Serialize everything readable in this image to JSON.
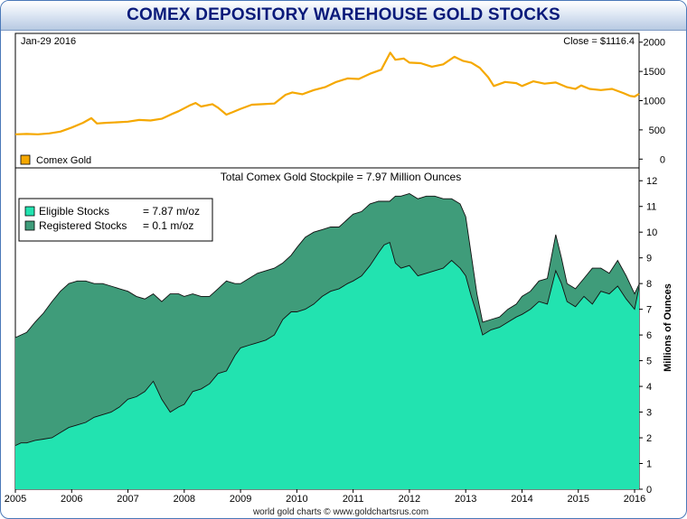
{
  "title": "COMEX DEPOSITORY WAREHOUSE GOLD STOCKS",
  "credit": "world gold charts © www.goldchartsrus.com",
  "colors": {
    "gold": "#f5a800",
    "eligible": "#22e3b0",
    "registered": "#3f9c7a",
    "accent": "#0a1a7a"
  },
  "chart_data": [
    {
      "type": "line",
      "name": "price-panel",
      "date_label": "Jan-29  2016",
      "close_label": "Close = $1116.4",
      "legend": [
        {
          "name": "Comex Gold",
          "color": "#f5a800"
        }
      ],
      "x_range": [
        2005,
        2016.08
      ],
      "ylim": [
        -150,
        2150
      ],
      "yticks": [
        0,
        500,
        1000,
        1500,
        2000
      ],
      "series": [
        {
          "name": "Comex Gold",
          "x": [
            2005.0,
            2005.2,
            2005.4,
            2005.6,
            2005.8,
            2006.0,
            2006.2,
            2006.35,
            2006.45,
            2006.6,
            2006.8,
            2007.0,
            2007.2,
            2007.4,
            2007.6,
            2007.8,
            2007.9,
            2008.1,
            2008.2,
            2008.3,
            2008.5,
            2008.6,
            2008.75,
            2008.85,
            2009.0,
            2009.2,
            2009.4,
            2009.6,
            2009.8,
            2009.92,
            2010.1,
            2010.3,
            2010.5,
            2010.7,
            2010.9,
            2011.1,
            2011.3,
            2011.5,
            2011.66,
            2011.75,
            2011.9,
            2012.0,
            2012.2,
            2012.4,
            2012.6,
            2012.8,
            2012.95,
            2013.1,
            2013.25,
            2013.4,
            2013.5,
            2013.7,
            2013.9,
            2014.0,
            2014.2,
            2014.4,
            2014.6,
            2014.8,
            2014.95,
            2015.05,
            2015.2,
            2015.4,
            2015.6,
            2015.8,
            2015.92,
            2016.0,
            2016.08
          ],
          "values": [
            425,
            430,
            425,
            440,
            470,
            540,
            620,
            700,
            610,
            620,
            630,
            640,
            670,
            660,
            690,
            780,
            820,
            920,
            960,
            900,
            940,
            880,
            760,
            800,
            860,
            930,
            940,
            950,
            1100,
            1140,
            1110,
            1180,
            1230,
            1320,
            1380,
            1370,
            1460,
            1530,
            1820,
            1700,
            1720,
            1650,
            1640,
            1580,
            1620,
            1750,
            1680,
            1650,
            1560,
            1400,
            1250,
            1320,
            1300,
            1250,
            1330,
            1290,
            1310,
            1230,
            1200,
            1260,
            1200,
            1180,
            1200,
            1130,
            1080,
            1070,
            1116
          ]
        }
      ]
    },
    {
      "type": "area",
      "name": "stocks-panel",
      "title": "Total Comex Gold Stockpile = 7.97 Million Ounces",
      "ylabel": "Millions of Ounces",
      "ylim": [
        0,
        12.5
      ],
      "yticks": [
        0,
        1,
        2,
        3,
        4,
        5,
        6,
        7,
        8,
        9,
        10,
        11,
        12
      ],
      "x_range": [
        2005,
        2016.08
      ],
      "xticks": [
        "2005",
        "2006",
        "2007",
        "2008",
        "2009",
        "2010",
        "2011",
        "2012",
        "2013",
        "2014",
        "2015",
        "2016"
      ],
      "legend": [
        {
          "name": "Eligible Stocks",
          "value": "= 7.87 m/oz",
          "color": "#22e3b0"
        },
        {
          "name": "Registered Stocks",
          "value": "= 0.1 m/oz",
          "color": "#3f9c7a"
        }
      ],
      "x": [
        2005.0,
        2005.1,
        2005.2,
        2005.35,
        2005.5,
        2005.65,
        2005.8,
        2005.95,
        2006.1,
        2006.25,
        2006.4,
        2006.55,
        2006.7,
        2006.85,
        2007.0,
        2007.15,
        2007.3,
        2007.45,
        2007.6,
        2007.75,
        2007.9,
        2008.0,
        2008.15,
        2008.3,
        2008.45,
        2008.6,
        2008.75,
        2008.9,
        2009.0,
        2009.15,
        2009.3,
        2009.45,
        2009.6,
        2009.75,
        2009.9,
        2010.0,
        2010.15,
        2010.3,
        2010.45,
        2010.6,
        2010.75,
        2010.9,
        2011.0,
        2011.15,
        2011.3,
        2011.45,
        2011.55,
        2011.65,
        2011.75,
        2011.85,
        2012.0,
        2012.15,
        2012.3,
        2012.45,
        2012.6,
        2012.75,
        2012.9,
        2013.0,
        2013.1,
        2013.2,
        2013.3,
        2013.45,
        2013.6,
        2013.75,
        2013.9,
        2014.0,
        2014.15,
        2014.3,
        2014.45,
        2014.6,
        2014.7,
        2014.8,
        2014.95,
        2015.1,
        2015.25,
        2015.4,
        2015.55,
        2015.7,
        2015.85,
        2016.0,
        2016.08
      ],
      "series": [
        {
          "name": "Eligible Stocks",
          "values": [
            1.7,
            1.8,
            1.8,
            1.9,
            1.95,
            2.0,
            2.2,
            2.4,
            2.5,
            2.6,
            2.8,
            2.9,
            3.0,
            3.2,
            3.5,
            3.6,
            3.8,
            4.2,
            3.5,
            3.0,
            3.2,
            3.3,
            3.8,
            3.9,
            4.1,
            4.5,
            4.6,
            5.2,
            5.5,
            5.6,
            5.7,
            5.8,
            6.0,
            6.6,
            6.9,
            6.9,
            7.0,
            7.2,
            7.5,
            7.7,
            7.8,
            8.0,
            8.1,
            8.3,
            8.7,
            9.2,
            9.5,
            9.6,
            8.8,
            8.6,
            8.7,
            8.3,
            8.4,
            8.5,
            8.6,
            8.9,
            8.6,
            8.3,
            7.5,
            6.8,
            6.0,
            6.2,
            6.3,
            6.5,
            6.7,
            6.8,
            7.0,
            7.3,
            7.2,
            8.5,
            8.0,
            7.3,
            7.1,
            7.5,
            7.2,
            7.7,
            7.6,
            7.9,
            7.4,
            7.0,
            7.87
          ]
        },
        {
          "name": "Registered Stocks",
          "values": [
            4.2,
            4.2,
            4.3,
            4.6,
            4.9,
            5.3,
            5.5,
            5.6,
            5.6,
            5.5,
            5.2,
            5.1,
            4.9,
            4.6,
            4.2,
            3.9,
            3.6,
            3.4,
            3.8,
            4.6,
            4.4,
            4.2,
            3.8,
            3.6,
            3.4,
            3.3,
            3.5,
            2.8,
            2.5,
            2.6,
            2.7,
            2.7,
            2.6,
            2.2,
            2.2,
            2.5,
            2.8,
            2.8,
            2.6,
            2.5,
            2.4,
            2.5,
            2.6,
            2.5,
            2.4,
            2.0,
            1.7,
            1.6,
            2.6,
            2.8,
            2.8,
            3.0,
            3.0,
            2.9,
            2.7,
            2.4,
            2.5,
            2.3,
            1.6,
            0.8,
            0.5,
            0.4,
            0.4,
            0.5,
            0.5,
            0.7,
            0.7,
            0.8,
            1.0,
            1.4,
            1.0,
            0.7,
            0.7,
            0.7,
            1.4,
            0.9,
            0.8,
            1.0,
            0.9,
            0.6,
            0.1
          ]
        }
      ]
    }
  ]
}
